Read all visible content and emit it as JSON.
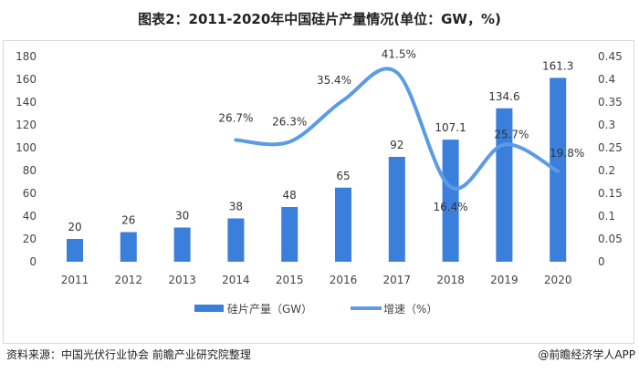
{
  "title": "图表2：2011-2020年中国硅片产量情况(单位：GW，%)",
  "chart_data": {
    "type": "bar+line",
    "categories": [
      "2011",
      "2012",
      "2013",
      "2014",
      "2015",
      "2016",
      "2017",
      "2018",
      "2019",
      "2020"
    ],
    "series": [
      {
        "name": "硅片产量（GW）",
        "type": "bar",
        "axis": "left",
        "color": "#3b7fdc",
        "values": [
          20,
          26,
          30,
          38,
          48,
          65,
          92,
          107.1,
          134.6,
          161.3
        ],
        "labels": [
          "20",
          "26",
          "30",
          "38",
          "48",
          "65",
          "92",
          "107.1",
          "134.6",
          "161.3"
        ]
      },
      {
        "name": "增速（%）",
        "type": "line",
        "axis": "right",
        "color": "#5b9be6",
        "smooth": true,
        "values": [
          null,
          null,
          null,
          0.267,
          0.263,
          0.354,
          0.415,
          0.164,
          0.257,
          0.198
        ],
        "labels": [
          null,
          null,
          null,
          "26.7%",
          "26.3%",
          "35.4%",
          "41.5%",
          "16.4%",
          "25.7%",
          "19.8%"
        ]
      }
    ],
    "y_left": {
      "range": [
        0,
        180
      ],
      "ticks": [
        "0",
        "20",
        "40",
        "60",
        "80",
        "100",
        "120",
        "140",
        "160",
        "180"
      ]
    },
    "y_right": {
      "range": [
        0,
        0.45
      ],
      "ticks": [
        "0",
        "0.05",
        "0.1",
        "0.15",
        "0.2",
        "0.25",
        "0.3",
        "0.35",
        "0.4",
        "0.45"
      ]
    },
    "grid": false,
    "legend": "bottom"
  },
  "footer": {
    "source": "资料来源：中国光伏行业协会 前瞻产业研究院整理",
    "brand": "@前瞻经济学人APP"
  }
}
